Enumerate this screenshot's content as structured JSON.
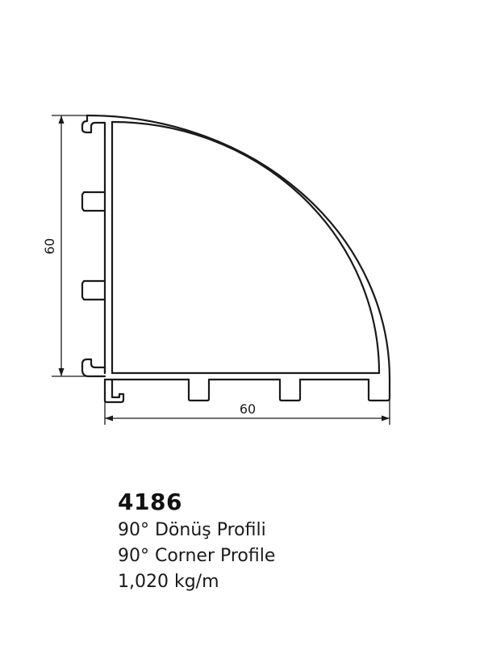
{
  "dimensions": {
    "height_label": "60",
    "width_label": "60"
  },
  "product": {
    "code": "4186",
    "name_tr": "90° Dönüş Profili",
    "name_en": "90° Corner Profile",
    "weight": "1,020 kg/m"
  },
  "colors": {
    "stroke": "#1a1a1a",
    "background": "#ffffff"
  }
}
